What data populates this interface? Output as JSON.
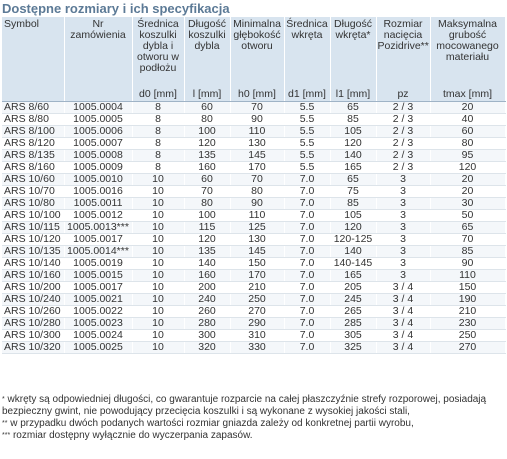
{
  "title": "Dostępne rozmiary i ich specyfikacja",
  "headers": {
    "symbol": "Symbol",
    "order_no": "Nr zamówienia",
    "d0": "Średnica koszulki dybla i otworu w podłożu",
    "l": "Długość koszulki dybla",
    "h0": "Minimalna głębokość otworu",
    "d1": "Średnica wkręta",
    "l1": "Długość wkręta*",
    "pz": "Rozmiar nacięcia Pozidrive**",
    "tmax": "Maksymalna grubość mocowanego materiału"
  },
  "units": {
    "symbol": "",
    "order_no": "",
    "d0": "d0 [mm]",
    "l": "l [mm]",
    "h0": "h0 [mm]",
    "d1": "d1 [mm]",
    "l1": "l1 [mm]",
    "pz": "pz",
    "tmax": "tmax [mm]"
  },
  "rows": [
    {
      "symbol": "ARS 8/60",
      "order_no": "1005.0004",
      "d0": "8",
      "l": "60",
      "h0": "70",
      "d1": "5.5",
      "l1": "65",
      "pz": "2 / 3",
      "tmax": "20"
    },
    {
      "symbol": "ARS 8/80",
      "order_no": "1005.0005",
      "d0": "8",
      "l": "80",
      "h0": "90",
      "d1": "5.5",
      "l1": "85",
      "pz": "2 / 3",
      "tmax": "40"
    },
    {
      "symbol": "ARS 8/100",
      "order_no": "1005.0006",
      "d0": "8",
      "l": "100",
      "h0": "110",
      "d1": "5.5",
      "l1": "105",
      "pz": "2 / 3",
      "tmax": "60"
    },
    {
      "symbol": "ARS 8/120",
      "order_no": "1005.0007",
      "d0": "8",
      "l": "120",
      "h0": "130",
      "d1": "5.5",
      "l1": "120",
      "pz": "2 / 3",
      "tmax": "80"
    },
    {
      "symbol": "ARS 8/135",
      "order_no": "1005.0008",
      "d0": "8",
      "l": "135",
      "h0": "145",
      "d1": "5.5",
      "l1": "140",
      "pz": "2 / 3",
      "tmax": "95"
    },
    {
      "symbol": "ARS 8/160",
      "order_no": "1005.0009",
      "d0": "8",
      "l": "160",
      "h0": "170",
      "d1": "5.5",
      "l1": "165",
      "pz": "2 / 3",
      "tmax": "120"
    },
    {
      "symbol": "ARS 10/60",
      "order_no": "1005.0010",
      "d0": "10",
      "l": "60",
      "h0": "70",
      "d1": "7.0",
      "l1": "65",
      "pz": "3",
      "tmax": "20"
    },
    {
      "symbol": "ARS 10/70",
      "order_no": "1005.0016",
      "d0": "10",
      "l": "70",
      "h0": "80",
      "d1": "7.0",
      "l1": "75",
      "pz": "3",
      "tmax": "20"
    },
    {
      "symbol": "ARS 10/80",
      "order_no": "1005.0011",
      "d0": "10",
      "l": "80",
      "h0": "90",
      "d1": "7.0",
      "l1": "85",
      "pz": "3",
      "tmax": "30"
    },
    {
      "symbol": "ARS 10/100",
      "order_no": "1005.0012",
      "d0": "10",
      "l": "100",
      "h0": "110",
      "d1": "7.0",
      "l1": "105",
      "pz": "3",
      "tmax": "50"
    },
    {
      "symbol": "ARS 10/115",
      "order_no": "1005.0013***",
      "d0": "10",
      "l": "115",
      "h0": "125",
      "d1": "7.0",
      "l1": "120",
      "pz": "3",
      "tmax": "65"
    },
    {
      "symbol": "ARS 10/120",
      "order_no": "1005.0017",
      "d0": "10",
      "l": "120",
      "h0": "130",
      "d1": "7.0",
      "l1": "120-125",
      "pz": "3",
      "tmax": "70"
    },
    {
      "symbol": "ARS 10/135",
      "order_no": "1005.0014***",
      "d0": "10",
      "l": "135",
      "h0": "145",
      "d1": "7.0",
      "l1": "140",
      "pz": "3",
      "tmax": "85"
    },
    {
      "symbol": "ARS 10/140",
      "order_no": "1005.0019",
      "d0": "10",
      "l": "140",
      "h0": "150",
      "d1": "7.0",
      "l1": "140-145",
      "pz": "3",
      "tmax": "90"
    },
    {
      "symbol": "ARS 10/160",
      "order_no": "1005.0015",
      "d0": "10",
      "l": "160",
      "h0": "170",
      "d1": "7.0",
      "l1": "165",
      "pz": "3",
      "tmax": "110"
    },
    {
      "symbol": "ARS 10/200",
      "order_no": "1005.0017",
      "d0": "10",
      "l": "200",
      "h0": "210",
      "d1": "7.0",
      "l1": "205",
      "pz": "3 / 4",
      "tmax": "150"
    },
    {
      "symbol": "ARS 10/240",
      "order_no": "1005.0021",
      "d0": "10",
      "l": "240",
      "h0": "250",
      "d1": "7.0",
      "l1": "245",
      "pz": "3 / 4",
      "tmax": "190"
    },
    {
      "symbol": "ARS 10/260",
      "order_no": "1005.0022",
      "d0": "10",
      "l": "260",
      "h0": "270",
      "d1": "7.0",
      "l1": "265",
      "pz": "3 / 4",
      "tmax": "210"
    },
    {
      "symbol": "ARS 10/280",
      "order_no": "1005.0023",
      "d0": "10",
      "l": "280",
      "h0": "290",
      "d1": "7.0",
      "l1": "285",
      "pz": "3 / 4",
      "tmax": "230"
    },
    {
      "symbol": "ARS 10/300",
      "order_no": "1005.0024",
      "d0": "10",
      "l": "300",
      "h0": "310",
      "d1": "7.0",
      "l1": "305",
      "pz": "3 / 4",
      "tmax": "250"
    },
    {
      "symbol": "ARS 10/320",
      "order_no": "1005.0025",
      "d0": "10",
      "l": "320",
      "h0": "330",
      "d1": "7.0",
      "l1": "325",
      "pz": "3 / 4",
      "tmax": "270"
    }
  ],
  "footnotes": [
    {
      "mark": "*",
      "text": "wkręty są odpowiedniej długości, co gwarantuje rozparcie na całej płaszczyźnie strefy rozporowej, posiadają bezpieczny gwint, nie powodujący przecięcia koszulki i są wykonane z wysokiej jakości stali,"
    },
    {
      "mark": "**",
      "text": "w przypadku dwóch podanych wartości rozmiar gniazda zależy od konkretnej partii wyrobu,"
    },
    {
      "mark": "***",
      "text": "rozmiar dostępny wyłącznie do wyczerpania zapasów."
    }
  ]
}
